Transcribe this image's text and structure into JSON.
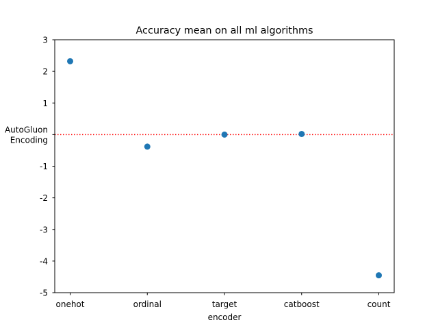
{
  "chart_data": {
    "type": "scatter",
    "title": "Accuracy mean on all ml algorithms",
    "xlabel": "encoder",
    "ylabel": "",
    "categories": [
      "onehot",
      "ordinal",
      "target",
      "catboost",
      "count"
    ],
    "values": [
      2.32,
      -0.38,
      0.0,
      0.02,
      -4.45
    ],
    "ylim": [
      -5,
      3
    ],
    "yticks": [
      3,
      2,
      1,
      0,
      -1,
      -2,
      -3,
      -4,
      -5
    ],
    "ytick_labels": [
      "3",
      "2",
      "1",
      "AutoGluon\nEncoding",
      "-1",
      "-2",
      "-3",
      "-4",
      "-5"
    ],
    "reference_line": {
      "value": 0,
      "style": "dotted",
      "color": "#ff0000"
    },
    "marker_color": "#1f77b4",
    "grid": false,
    "legend": "none"
  }
}
